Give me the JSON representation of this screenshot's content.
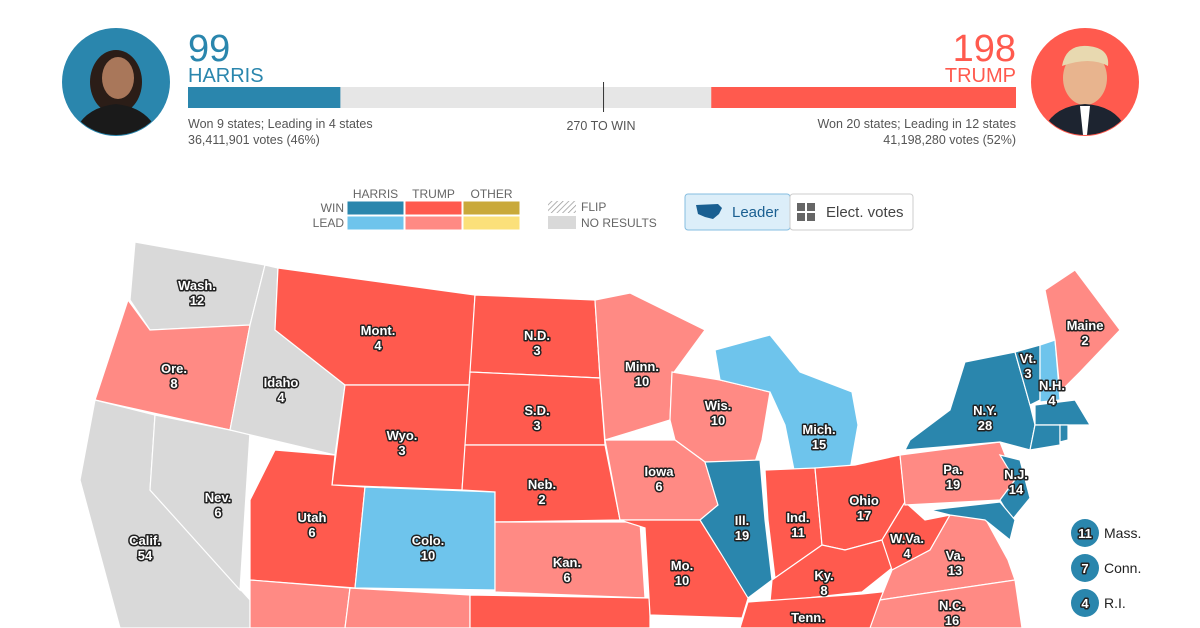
{
  "header": {
    "harris": {
      "electoral_votes": 99,
      "name": "HARRIS",
      "summary": "Won 9 states; Leading in 4 states",
      "popular": "36,411,901 votes (46%)",
      "color": "#2a86ad"
    },
    "trump": {
      "electoral_votes": 198,
      "name": "TRUMP",
      "summary": "Won 20 states; Leading in 12 states",
      "popular": "41,198,280 votes (52%)",
      "color": "#ff5a4e"
    },
    "threshold": {
      "value": 270,
      "label": "270 TO WIN"
    },
    "bar_range": [
      0,
      538
    ]
  },
  "legend": {
    "columns": [
      "HARRIS",
      "TRUMP",
      "OTHER"
    ],
    "rows": [
      "WIN",
      "LEAD"
    ],
    "colors": [
      [
        "#2a86ad",
        "#ff5a4e",
        "#c9a93a"
      ],
      [
        "#6ec4ec",
        "#ff8a84",
        "#fbe07a"
      ]
    ],
    "flip": "FLIP",
    "no_results": "NO RESULTS",
    "no_results_color": "#d9d9d9"
  },
  "toggle": {
    "buttons": [
      "Leader",
      "Elect. votes"
    ]
  },
  "states": [
    {
      "label": "Wash.",
      "votes": 12,
      "color": "#d9d9d9"
    },
    {
      "label": "Ore.",
      "votes": 8,
      "color": "#ff8a84"
    },
    {
      "label": "Calif.",
      "votes": 54,
      "color": "#d9d9d9"
    },
    {
      "label": "Nev.",
      "votes": 6,
      "color": "#d9d9d9"
    },
    {
      "label": "Idaho",
      "votes": 4,
      "color": "#d9d9d9"
    },
    {
      "label": "Mont.",
      "votes": 4,
      "color": "#ff5a4e"
    },
    {
      "label": "Wyo.",
      "votes": 3,
      "color": "#ff5a4e"
    },
    {
      "label": "Utah",
      "votes": 6,
      "color": "#ff5a4e"
    },
    {
      "label": "Colo.",
      "votes": 10,
      "color": "#6ec4ec"
    },
    {
      "label": null,
      "votes": null,
      "color": "#ff8a84"
    },
    {
      "label": null,
      "votes": null,
      "color": "#ff8a84"
    },
    {
      "label": "N.D.",
      "votes": 3,
      "color": "#ff5a4e"
    },
    {
      "label": "S.D.",
      "votes": 3,
      "color": "#ff5a4e"
    },
    {
      "label": "Neb.",
      "votes": 2,
      "color": "#ff5a4e"
    },
    {
      "label": "Kan.",
      "votes": 6,
      "color": "#ff8a84"
    },
    {
      "label": null,
      "votes": null,
      "color": "#ff5a4e"
    },
    {
      "label": "Minn.",
      "votes": 10,
      "color": "#ff8a84"
    },
    {
      "label": "Wis.",
      "votes": 10,
      "color": "#ff8a84"
    },
    {
      "label": "Iowa",
      "votes": 6,
      "color": "#ff8a84"
    },
    {
      "label": "Mo.",
      "votes": 10,
      "color": "#ff5a4e"
    },
    {
      "label": "Ill.",
      "votes": 19,
      "color": "#2a86ad"
    },
    {
      "label": "Mich.",
      "votes": 15,
      "color": "#6ec4ec"
    },
    {
      "label": "Ind.",
      "votes": 11,
      "color": "#ff5a4e"
    },
    {
      "label": "Ohio",
      "votes": 17,
      "color": "#ff5a4e"
    },
    {
      "label": "Ky.",
      "votes": 8,
      "color": "#ff5a4e"
    },
    {
      "label": "Tenn.",
      "votes": null,
      "color": "#ff5a4e"
    },
    {
      "label": "W.Va.",
      "votes": 4,
      "color": "#ff5a4e"
    },
    {
      "label": "Va.",
      "votes": 13,
      "color": "#ff8a84"
    },
    {
      "label": "N.C.",
      "votes": 16,
      "color": "#ff8a84"
    },
    {
      "label": "Pa.",
      "votes": 19,
      "color": "#ff8a84"
    },
    {
      "label": "N.Y.",
      "votes": 28,
      "color": "#2a86ad"
    },
    {
      "label": "N.J.",
      "votes": 14,
      "color": "#2a86ad"
    },
    {
      "label": "Vt.",
      "votes": 3,
      "color": "#2a86ad"
    },
    {
      "label": "N.H.",
      "votes": 4,
      "color": "#6ec4ec"
    },
    {
      "label": "Maine",
      "votes": 2,
      "color": "#ff8a84"
    },
    {
      "label": "Mass.",
      "votes": 11,
      "color": "#2a86ad",
      "callout": true
    },
    {
      "label": "Conn.",
      "votes": 7,
      "color": "#2a86ad",
      "callout": true
    },
    {
      "label": "R.I.",
      "votes": 4,
      "color": "#2a86ad",
      "callout": true
    },
    {
      "label": null,
      "votes": null,
      "color": "#2a86ad"
    }
  ]
}
